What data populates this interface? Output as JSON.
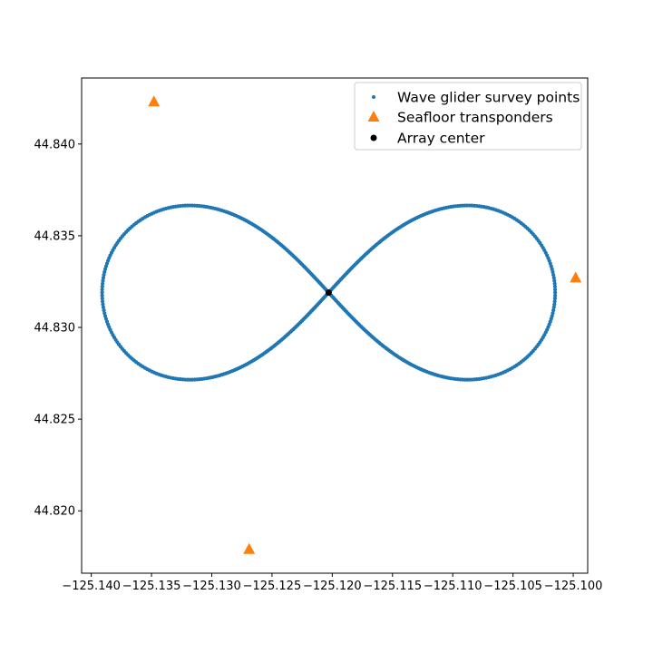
{
  "chart_data": {
    "type": "scatter",
    "title": "",
    "xlabel": "",
    "ylabel": "",
    "xlim": [
      -125.1408,
      -125.0988
    ],
    "ylim": [
      44.8166,
      44.8436
    ],
    "x_ticks": [
      -125.14,
      -125.135,
      -125.13,
      -125.125,
      -125.12,
      -125.115,
      -125.11,
      -125.105,
      -125.1
    ],
    "x_tick_labels": [
      "−125.140",
      "−125.135",
      "−125.130",
      "−125.125",
      "−125.120",
      "−125.115",
      "−125.110",
      "−125.105",
      "−125.100"
    ],
    "y_ticks": [
      44.82,
      44.825,
      44.83,
      44.835,
      44.84
    ],
    "y_tick_labels": [
      "44.820",
      "44.825",
      "44.830",
      "44.835",
      "44.840"
    ],
    "grid": false,
    "legend_position": "top-right",
    "series": [
      {
        "name": "Wave glider survey points",
        "marker": "dot",
        "color": "#1f77b4",
        "shape": "figure-eight",
        "center": [
          -125.1203,
          44.8319
        ],
        "x_half_width": 0.0188,
        "y_half_height": 0.00475
      },
      {
        "name": "Seafloor transponders",
        "marker": "triangle",
        "color": "#ff7f0e",
        "points": [
          {
            "x": -125.1348,
            "y": 44.8423
          },
          {
            "x": -125.0998,
            "y": 44.8327
          },
          {
            "x": -125.1269,
            "y": 44.8179
          }
        ]
      },
      {
        "name": "Array center",
        "marker": "circle",
        "color": "#000000",
        "points": [
          {
            "x": -125.1203,
            "y": 44.8319
          }
        ]
      }
    ]
  }
}
